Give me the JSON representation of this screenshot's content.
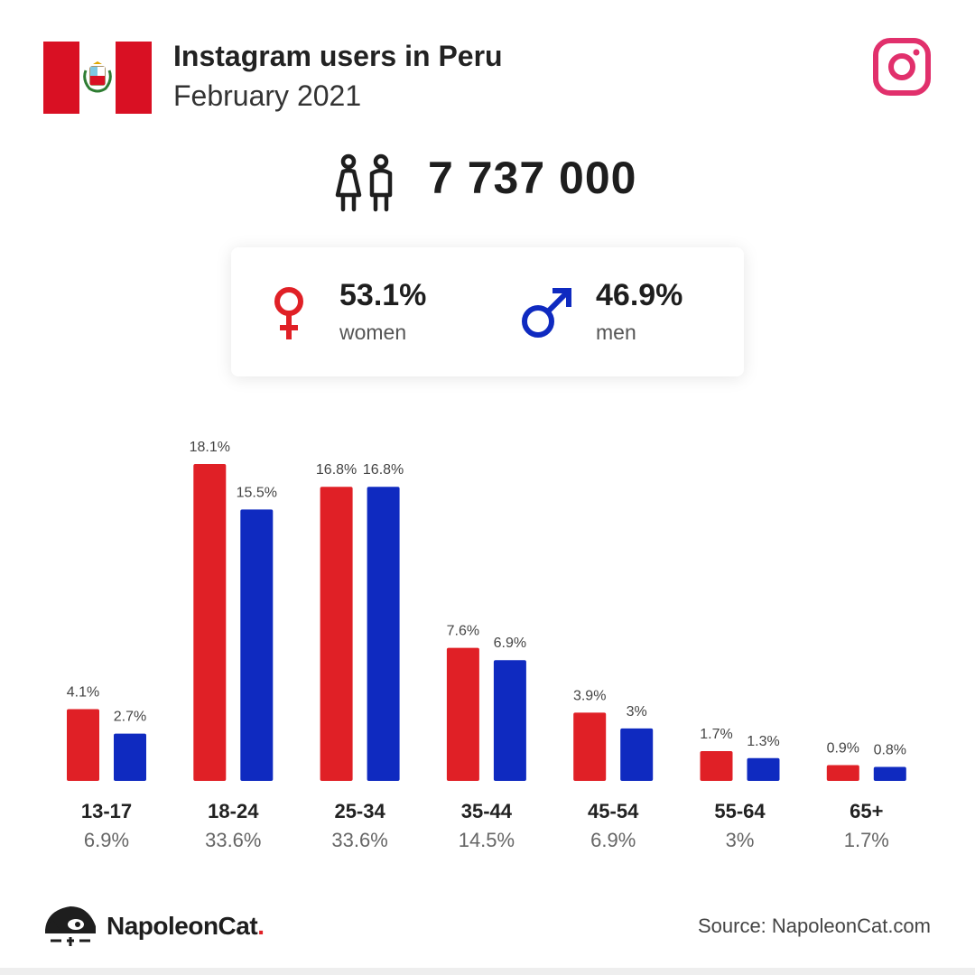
{
  "header": {
    "title": "Instagram users in Peru",
    "subtitle": "February 2021"
  },
  "total_users": "7 737 000",
  "gender": {
    "women": {
      "pct": "53.1%",
      "label": "women"
    },
    "men": {
      "pct": "46.9%",
      "label": "men"
    }
  },
  "colors": {
    "women": "#e02026",
    "men": "#0f2ac0",
    "instagram": "#e1306c",
    "flag_red": "#d91023"
  },
  "chart_data": {
    "type": "bar",
    "categories": [
      "13-17",
      "18-24",
      "25-34",
      "35-44",
      "45-54",
      "55-64",
      "65+"
    ],
    "category_totals": [
      "6.9%",
      "33.6%",
      "33.6%",
      "14.5%",
      "6.9%",
      "3%",
      "1.7%"
    ],
    "series": [
      {
        "name": "women",
        "values": [
          4.1,
          18.1,
          16.8,
          7.6,
          3.9,
          1.7,
          0.9
        ],
        "labels": [
          "4.1%",
          "18.1%",
          "16.8%",
          "7.6%",
          "3.9%",
          "1.7%",
          "0.9%"
        ]
      },
      {
        "name": "men",
        "values": [
          2.7,
          15.5,
          16.8,
          6.9,
          3.0,
          1.3,
          0.8
        ],
        "labels": [
          "2.7%",
          "15.5%",
          "16.8%",
          "6.9%",
          "3%",
          "1.3%",
          "0.8%"
        ]
      }
    ],
    "ylim": [
      0,
      18.1
    ]
  },
  "footer": {
    "brand": "NapoleonCat",
    "brand_dot": ".",
    "source": "Source: NapoleonCat.com"
  },
  "icons": {
    "flag": "peru-flag-icon",
    "instagram": "instagram-icon",
    "people": "people-icon",
    "female": "female-symbol-icon",
    "male": "male-symbol-icon",
    "logo": "napoleoncat-logo-icon"
  }
}
